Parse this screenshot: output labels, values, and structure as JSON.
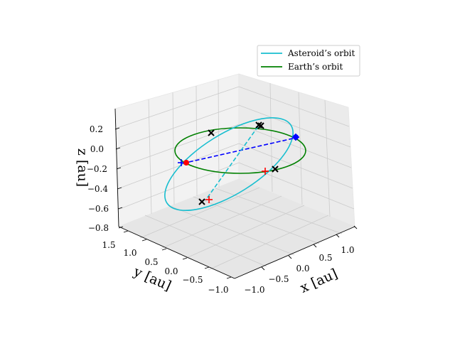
{
  "chart_data": {
    "type": "3d-line",
    "xlabel": "x [au]",
    "ylabel": "y [au]",
    "zlabel": "z [au]",
    "x_ticks": [
      "−1.0",
      "−0.5",
      "0.0",
      "0.5",
      "1.0"
    ],
    "y_ticks": [
      "−1.0",
      "−0.5",
      "0.0",
      "0.5",
      "1.0",
      "1.5"
    ],
    "z_ticks": [
      "−0.8",
      "−0.6",
      "−0.4",
      "−0.2",
      "0.0",
      "0.2"
    ],
    "xlim": [
      -1.3,
      1.3
    ],
    "ylim": [
      -1.1,
      1.6
    ],
    "zlim": [
      -0.8,
      0.35
    ],
    "grid": true,
    "legend_position": "top-right",
    "series": [
      {
        "name": "Asteroid’s orbit",
        "color": "#17becf",
        "style": "solid",
        "ellipse": {
          "center": [
            0.15,
            0.2,
            -0.25
          ],
          "semi_major": 1.1,
          "semi_minor": 0.65,
          "inclination_deg": 25
        }
      },
      {
        "name": "Earth’s orbit",
        "color": "#008000",
        "style": "solid",
        "ellipse": {
          "center": [
            0,
            0,
            0
          ],
          "semi_major": 1.0,
          "semi_minor": 1.0,
          "inclination_deg": 0
        }
      }
    ],
    "segments": [
      {
        "color": "#0000ff",
        "style": "dashed",
        "from": "earth-left",
        "to": "earth-right"
      },
      {
        "color": "#17becf",
        "style": "dashed",
        "from": "asteroid-top",
        "to": "asteroid-bottom"
      }
    ],
    "markers": [
      {
        "symbol": "x",
        "color": "#000000"
      },
      {
        "symbol": "x",
        "color": "#000000"
      },
      {
        "symbol": "x",
        "color": "#000000"
      },
      {
        "symbol": "x",
        "color": "#000000"
      },
      {
        "symbol": "x",
        "color": "#000000"
      },
      {
        "symbol": "+",
        "color": "#ff0000"
      },
      {
        "symbol": "+",
        "color": "#ff0000"
      },
      {
        "symbol": "+",
        "color": "#0000ff"
      },
      {
        "symbol": "dot",
        "color": "#ff0000"
      },
      {
        "symbol": "dot",
        "color": "#0000ff"
      }
    ]
  }
}
